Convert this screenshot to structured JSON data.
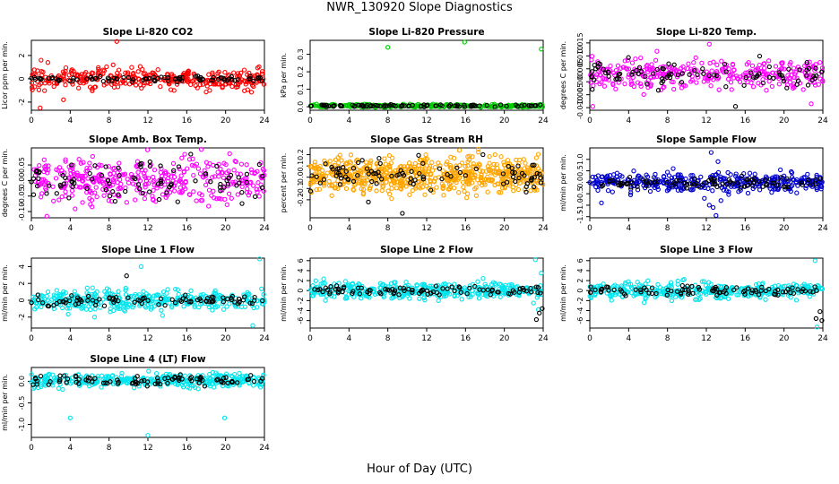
{
  "page": {
    "title": "NWR_130920  Slope Diagnostics",
    "x_caption": "Hour of Day (UTC)"
  },
  "chart_data": [
    {
      "type": "scatter",
      "title": "Slope Li-820 CO2",
      "ylabel": "Licor ppm per min.",
      "xlim": [
        0,
        24
      ],
      "ylim": [
        -2.7,
        3.3
      ],
      "xticks": [
        "0",
        "4",
        "8",
        "12",
        "16",
        "20",
        "24"
      ],
      "yticks": [
        {
          "v": -2,
          "label": "-2"
        },
        {
          "v": 0,
          "label": "0"
        },
        {
          "v": 2,
          "label": "2"
        }
      ],
      "series": [
        {
          "color": "#ff0000",
          "center": 0.0,
          "spread": 0.45,
          "n": 330,
          "outliers": [
            [
              1.0,
              1.6
            ],
            [
              1.7,
              1.4
            ],
            [
              8.8,
              3.2
            ],
            [
              0.9,
              -2.5
            ],
            [
              3.3,
              -1.8
            ]
          ]
        },
        {
          "color": "#000000",
          "center": 0.0,
          "spread": 0.12,
          "n": 90,
          "outliers": []
        }
      ]
    },
    {
      "type": "scatter",
      "title": "Slope Li-820 Pressure",
      "ylabel": "kPa per min.",
      "xlim": [
        0,
        24
      ],
      "ylim": [
        -0.02,
        0.38
      ],
      "xticks": [
        "0",
        "4",
        "8",
        "12",
        "16",
        "20",
        "24"
      ],
      "yticks": [
        {
          "v": 0.0,
          "label": "0.0"
        },
        {
          "v": 0.1,
          "label": "0.1"
        },
        {
          "v": 0.2,
          "label": "0.2"
        },
        {
          "v": 0.3,
          "label": "0.3"
        }
      ],
      "series": [
        {
          "color": "#00cc00",
          "center": 0.005,
          "spread": 0.004,
          "n": 330,
          "outliers": [
            [
              8.0,
              0.34
            ],
            [
              15.9,
              0.37
            ],
            [
              23.8,
              0.33
            ]
          ]
        },
        {
          "color": "#000000",
          "center": 0.006,
          "spread": 0.003,
          "n": 90,
          "outliers": []
        }
      ]
    },
    {
      "type": "scatter",
      "title": "Slope Li-820 Temp.",
      "ylabel": "degrees C per min.",
      "xlim": [
        0,
        24
      ],
      "ylim": [
        -0.011,
        0.016
      ],
      "xticks": [
        "0",
        "4",
        "8",
        "12",
        "16",
        "20",
        "24"
      ],
      "yticks": [
        {
          "v": -0.01,
          "label": "-0.010"
        },
        {
          "v": -0.005,
          "label": "-0.005"
        },
        {
          "v": 0.0,
          "label": "0.000"
        },
        {
          "v": 0.005,
          "label": "0.005"
        },
        {
          "v": 0.01,
          "label": "0.010"
        },
        {
          "v": 0.015,
          "label": "0.015"
        }
      ],
      "series": [
        {
          "color": "#ff00ff",
          "center": 0.003,
          "spread": 0.003,
          "n": 330,
          "outliers": [
            [
              0.3,
              -0.0095
            ],
            [
              12.3,
              0.0145
            ],
            [
              22.8,
              -0.0085
            ]
          ]
        },
        {
          "color": "#000000",
          "center": 0.003,
          "spread": 0.0025,
          "n": 90,
          "outliers": [
            [
              15.0,
              -0.0095
            ]
          ]
        }
      ]
    },
    {
      "type": "scatter",
      "title": "Slope Amb. Box Temp.",
      "ylabel": "degrees C per min.",
      "xlim": [
        0,
        24
      ],
      "ylim": [
        -0.12,
        0.105
      ],
      "xticks": [
        "0",
        "4",
        "8",
        "12",
        "16",
        "20",
        "24"
      ],
      "yticks": [
        {
          "v": -0.1,
          "label": "-0.10"
        },
        {
          "v": -0.05,
          "label": "-0.05"
        },
        {
          "v": 0.0,
          "label": "0.00"
        },
        {
          "v": 0.05,
          "label": "0.05"
        }
      ],
      "series": [
        {
          "color": "#ff00ff",
          "center": 0.0,
          "spread": 0.035,
          "n": 380,
          "outliers": [
            [
              1.6,
              -0.115
            ],
            [
              17.5,
              0.1
            ]
          ]
        },
        {
          "color": "#000000",
          "center": 0.0,
          "spread": 0.03,
          "n": 90,
          "outliers": []
        }
      ]
    },
    {
      "type": "scatter",
      "title": "Slope Gas Stream RH",
      "ylabel": "percent per min.",
      "xlim": [
        0,
        24
      ],
      "ylim": [
        -0.36,
        0.26
      ],
      "xticks": [
        "0",
        "4",
        "8",
        "12",
        "16",
        "20",
        "24"
      ],
      "yticks": [
        {
          "v": -0.2,
          "label": "-0.2"
        },
        {
          "v": -0.1,
          "label": "-0.1"
        },
        {
          "v": 0.0,
          "label": "0.0"
        },
        {
          "v": 0.1,
          "label": "0.1"
        },
        {
          "v": 0.2,
          "label": "0.2"
        }
      ],
      "series": [
        {
          "color": "#ffa500",
          "center": 0.02,
          "spread": 0.08,
          "n": 650,
          "outliers": []
        },
        {
          "color": "#000000",
          "center": 0.02,
          "spread": 0.07,
          "n": 90,
          "outliers": [
            [
              9.5,
              -0.32
            ],
            [
              6.0,
              -0.22
            ],
            [
              17.8,
              0.2
            ]
          ]
        }
      ]
    },
    {
      "type": "scatter",
      "title": "Slope Sample Flow",
      "ylabel": "ml/min per min.",
      "xlim": [
        0,
        24
      ],
      "ylim": [
        -1.55,
        1.5
      ],
      "xticks": [
        "0",
        "4",
        "8",
        "12",
        "16",
        "20",
        "24"
      ],
      "yticks": [
        {
          "v": -1.5,
          "label": "-1.5"
        },
        {
          "v": -1.0,
          "label": "-1.0"
        },
        {
          "v": -0.5,
          "label": "-0.5"
        },
        {
          "v": 0.0,
          "label": "0.0"
        },
        {
          "v": 0.5,
          "label": "0.5"
        },
        {
          "v": 1.0,
          "label": "1.0"
        }
      ],
      "series": [
        {
          "color": "#0000cc",
          "center": 0.0,
          "spread": 0.2,
          "n": 380,
          "outliers": [
            [
              12.3,
              -1.0
            ],
            [
              12.7,
              -1.1
            ],
            [
              13.0,
              -1.45
            ],
            [
              12.5,
              1.3
            ],
            [
              13.2,
              0.9
            ],
            [
              11.8,
              -0.7
            ],
            [
              13.5,
              -0.8
            ],
            [
              1.2,
              -0.9
            ],
            [
              4.2,
              -0.55
            ]
          ]
        },
        {
          "color": "#000000",
          "center": 0.0,
          "spread": 0.12,
          "n": 90,
          "outliers": []
        }
      ]
    },
    {
      "type": "scatter",
      "title": "Slope Line 1 Flow",
      "ylabel": "ml/min per min.",
      "xlim": [
        0,
        24
      ],
      "ylim": [
        -3.3,
        5.0
      ],
      "xticks": [
        "0",
        "4",
        "8",
        "12",
        "16",
        "20",
        "24"
      ],
      "yticks": [
        {
          "v": -2,
          "label": "-2"
        },
        {
          "v": 0,
          "label": "0"
        },
        {
          "v": 2,
          "label": "2"
        },
        {
          "v": 4,
          "label": "4"
        }
      ],
      "series": [
        {
          "color": "#00e5ee",
          "center": 0.0,
          "spread": 0.6,
          "n": 380,
          "outliers": [
            [
              11.3,
              4.0
            ],
            [
              23.5,
              4.9
            ],
            [
              22.8,
              -3.0
            ],
            [
              13.5,
              -1.8
            ],
            [
              6.5,
              -2.0
            ]
          ]
        },
        {
          "color": "#000000",
          "center": 0.0,
          "spread": 0.3,
          "n": 90,
          "outliers": [
            [
              9.8,
              2.9
            ]
          ]
        }
      ]
    },
    {
      "type": "scatter",
      "title": "Slope Line 2 Flow",
      "ylabel": "ml/min per min.",
      "xlim": [
        0,
        24
      ],
      "ylim": [
        -7.5,
        6.5
      ],
      "xticks": [
        "0",
        "4",
        "8",
        "12",
        "16",
        "20",
        "24"
      ],
      "yticks": [
        {
          "v": -6,
          "label": "-6"
        },
        {
          "v": -4,
          "label": "-4"
        },
        {
          "v": -2,
          "label": "-2"
        },
        {
          "v": 0,
          "label": "0"
        },
        {
          "v": 2,
          "label": "2"
        },
        {
          "v": 4,
          "label": "4"
        },
        {
          "v": 6,
          "label": "6"
        }
      ],
      "series": [
        {
          "color": "#00e5ee",
          "center": 0.0,
          "spread": 0.8,
          "n": 380,
          "outliers": [
            [
              23.2,
              6.2
            ],
            [
              23.5,
              -3.8
            ],
            [
              23.8,
              3.5
            ],
            [
              23.0,
              -2.5
            ]
          ]
        },
        {
          "color": "#000000",
          "center": 0.0,
          "spread": 0.5,
          "n": 90,
          "outliers": [
            [
              23.3,
              -5.8
            ],
            [
              23.6,
              -4.5
            ],
            [
              23.9,
              -3.6
            ],
            [
              23.7,
              -0.5
            ]
          ]
        }
      ]
    },
    {
      "type": "scatter",
      "title": "Slope Line 3 Flow",
      "ylabel": "ml/min per min.",
      "xlim": [
        0,
        24
      ],
      "ylim": [
        -7.5,
        6.5
      ],
      "xticks": [
        "0",
        "4",
        "8",
        "12",
        "16",
        "20",
        "24"
      ],
      "yticks": [
        {
          "v": -6,
          "label": "-6"
        },
        {
          "v": -4,
          "label": "-4"
        },
        {
          "v": -2,
          "label": "-2"
        },
        {
          "v": 0,
          "label": "0"
        },
        {
          "v": 2,
          "label": "2"
        },
        {
          "v": 4,
          "label": "4"
        },
        {
          "v": 6,
          "label": "6"
        }
      ],
      "series": [
        {
          "color": "#00e5ee",
          "center": 0.0,
          "spread": 0.8,
          "n": 380,
          "outliers": [
            [
              23.2,
              6.0
            ],
            [
              23.4,
              -7.3
            ],
            [
              5.6,
              -2.4
            ]
          ]
        },
        {
          "color": "#000000",
          "center": 0.0,
          "spread": 0.5,
          "n": 90,
          "outliers": [
            [
              23.3,
              -5.6
            ],
            [
              23.7,
              -4.2
            ],
            [
              23.9,
              -6.0
            ]
          ]
        }
      ]
    },
    {
      "type": "scatter",
      "title": "Slope Line 4 (LT) Flow",
      "ylabel": "ml/min per min.",
      "xlim": [
        0,
        24
      ],
      "ylim": [
        -1.3,
        0.32
      ],
      "xticks": [
        "0",
        "4",
        "8",
        "12",
        "16",
        "20",
        "24"
      ],
      "yticks": [
        {
          "v": -1.0,
          "label": "-1.0"
        },
        {
          "v": -0.5,
          "label": "-0.5"
        },
        {
          "v": 0.0,
          "label": "0.0"
        }
      ],
      "series": [
        {
          "color": "#00e5ee",
          "center": 0.02,
          "spread": 0.08,
          "n": 380,
          "outliers": [
            [
              4.0,
              -0.85
            ],
            [
              19.9,
              -0.85
            ],
            [
              12.0,
              -1.25
            ]
          ]
        },
        {
          "color": "#000000",
          "center": 0.02,
          "spread": 0.06,
          "n": 90,
          "outliers": []
        }
      ]
    }
  ]
}
